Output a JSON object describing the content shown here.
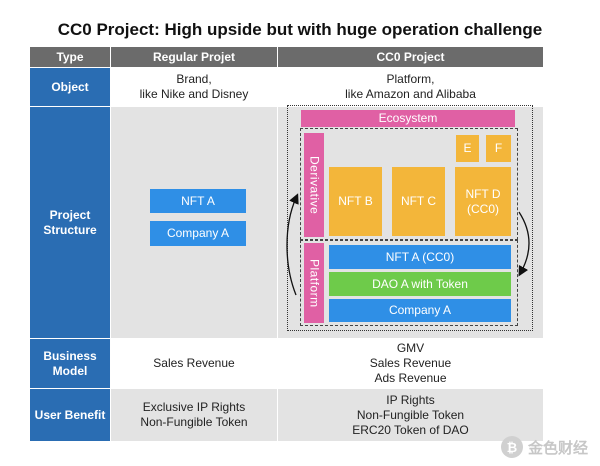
{
  "title": "CC0 Project: High upside but with huge operation challenge",
  "header": {
    "type": "Type",
    "regular": "Regular Projet",
    "cc0": "CC0 Project"
  },
  "rows": {
    "object": {
      "label": "Object",
      "regular": "Brand,\nlike Nike and Disney",
      "cc0": "Platform,\nlike Amazon and Alibaba"
    },
    "structure": {
      "label": "Project\nStructure"
    },
    "business": {
      "label": "Business\nModel",
      "regular": "Sales Revenue",
      "cc0": "GMV\nSales Revenue\nAds Revenue"
    },
    "benefit": {
      "label": "User Benefit",
      "regular": "Exclusive IP Rights\nNon-Fungible Token",
      "cc0": "IP Rights\nNon-Fungible Token\nERC20 Token of DAO"
    }
  },
  "regular_structure": {
    "nft": "NFT A",
    "company": "Company A"
  },
  "cc0_structure": {
    "ecosystem": "Ecosystem",
    "derivative": "Derivative",
    "platform": "Platform",
    "nft_b": "NFT B",
    "nft_c": "NFT C",
    "nft_d": "NFT D\n(CC0)",
    "e": "E",
    "f": "F",
    "nft_a_cc0": "NFT A (CC0)",
    "dao": "DAO A with Token",
    "company": "Company A"
  },
  "colors": {
    "header": "#6b6b6b",
    "row_head": "#2a6db3",
    "blue": "#2f8fe6",
    "pink": "#e060a4",
    "orange": "#f3b63a",
    "green": "#6ecb4a"
  },
  "watermark": {
    "text": "金色财经",
    "icon": "bitcoin-coin-icon"
  }
}
